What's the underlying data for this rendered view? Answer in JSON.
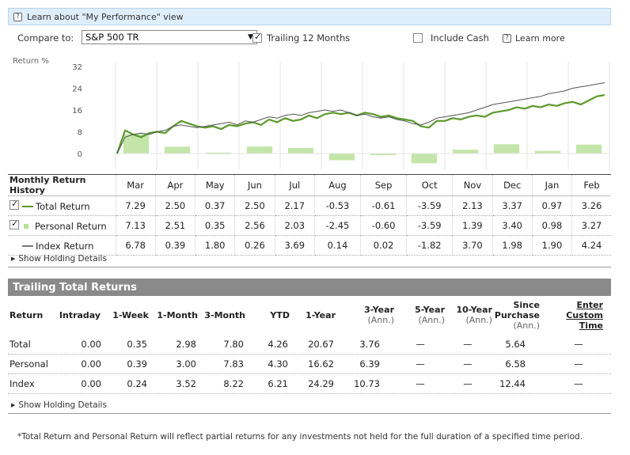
{
  "info_bar": {
    "icon": "question-icon",
    "text": "Learn about \"My Performance\" view"
  },
  "controls": {
    "compare_label": "Compare to:",
    "compare_value": "S&P 500 TR",
    "trailing_label": "Trailing 12 Months",
    "trailing_checked": true,
    "include_cash_label": "Include Cash",
    "include_cash_checked": false,
    "learn_more": "Learn more"
  },
  "chart_data": {
    "type": "line",
    "ylabel": "Return %",
    "yticks": [
      "32",
      "24",
      "16",
      "8",
      "0"
    ],
    "ylim": [
      -3,
      32
    ],
    "series": [
      {
        "name": "Total Return",
        "color": "#5a9a2a",
        "values": [
          0,
          8.5,
          7,
          6,
          7.5,
          8,
          7.5,
          10,
          12,
          11,
          10,
          9.5,
          10,
          9,
          10.5,
          10,
          11,
          11.5,
          10.5,
          12.5,
          11.5,
          13,
          12,
          12.5,
          14,
          13,
          14.5,
          15,
          14.5,
          15,
          14,
          15,
          14.5,
          13.5,
          14,
          13,
          12.5,
          12,
          10,
          9.5,
          12,
          12,
          13,
          12.5,
          13.5,
          14,
          13.5,
          15,
          15.5,
          16,
          17,
          16.5,
          17.5,
          17,
          18,
          17.5,
          18.5,
          19,
          18,
          19.5,
          21,
          21.5
        ]
      },
      {
        "name": "Index Return",
        "color": "#555555",
        "values": [
          0,
          6,
          7,
          7.5,
          7,
          8,
          8.5,
          10,
          10.5,
          10,
          9.5,
          10,
          10.5,
          11,
          11.5,
          10.5,
          12,
          11.5,
          12.5,
          13.5,
          13,
          14,
          14.5,
          14,
          15,
          15.5,
          16,
          15.5,
          16,
          15,
          14,
          14.5,
          13.5,
          13,
          13.5,
          12.5,
          12,
          11,
          10.5,
          11.5,
          13,
          13.5,
          14,
          14.5,
          15,
          16,
          17,
          18,
          18.5,
          19,
          19.5,
          20,
          20.5,
          21,
          22,
          22.5,
          23,
          24,
          24.5,
          25,
          25.5,
          26
        ]
      }
    ],
    "bars": {
      "name": "Personal Return",
      "color": "#b8e09a",
      "categories": [
        "Mar",
        "Apr",
        "May",
        "Jun",
        "Jul",
        "Aug",
        "Sep",
        "Oct",
        "Nov",
        "Dec",
        "Jan",
        "Feb"
      ],
      "values": [
        7.13,
        2.51,
        0.35,
        2.56,
        2.03,
        -2.45,
        -0.6,
        -3.59,
        1.39,
        3.4,
        0.98,
        3.27
      ]
    }
  },
  "monthly": {
    "title": "Monthly Return History",
    "months": [
      "Mar",
      "Apr",
      "May",
      "Jun",
      "Jul",
      "Aug",
      "Sep",
      "Oct",
      "Nov",
      "Dec",
      "Jan",
      "Feb"
    ],
    "rows": [
      {
        "label": "Total Return",
        "checked": true,
        "line_color": "#5a9a2a",
        "values": [
          "7.29",
          "2.50",
          "0.37",
          "2.50",
          "2.17",
          "-0.53",
          "-0.61",
          "-3.59",
          "2.13",
          "3.37",
          "0.97",
          "3.26"
        ]
      },
      {
        "label": "Personal Return",
        "checked": true,
        "line_color": "#b8e09a",
        "values": [
          "7.13",
          "2.51",
          "0.35",
          "2.56",
          "2.03",
          "-2.45",
          "-0.60",
          "-3.59",
          "1.39",
          "3.40",
          "0.98",
          "3.27"
        ]
      },
      {
        "label": "Index Return",
        "checked": false,
        "line_color": "#777777",
        "values": [
          "6.78",
          "0.39",
          "1.80",
          "0.26",
          "3.69",
          "0.14",
          "0.02",
          "-1.82",
          "3.70",
          "1.98",
          "1.90",
          "4.24"
        ]
      }
    ],
    "show_holding": "Show Holding Details"
  },
  "trailing": {
    "title": "Trailing Total Returns",
    "headers": {
      "return": "Return",
      "intraday": "Intraday",
      "week1": "1-Week",
      "month1": "1-Month",
      "month3": "3-Month",
      "ytd": "YTD",
      "year1": "1-Year",
      "year3": "3-Year",
      "year5": "5-Year",
      "year10": "10-Year",
      "since_a": "Since",
      "since_b": "Purchase",
      "ann": "(Ann.)",
      "custom_a": "Enter",
      "custom_b": "Custom",
      "custom_c": "Time"
    },
    "rows": [
      {
        "label": "Total",
        "values": [
          "0.00",
          "0.35",
          "2.98",
          "7.80",
          "4.26",
          "20.67",
          "3.76",
          "—",
          "—",
          "5.64",
          "—"
        ]
      },
      {
        "label": "Personal",
        "values": [
          "0.00",
          "0.39",
          "3.00",
          "7.83",
          "4.30",
          "16.62",
          "6.39",
          "—",
          "—",
          "6.58",
          "—"
        ]
      },
      {
        "label": "Index",
        "values": [
          "0.00",
          "0.24",
          "3.52",
          "8.22",
          "6.21",
          "24.29",
          "10.73",
          "—",
          "—",
          "12.44",
          "—"
        ]
      }
    ],
    "show_holding": "Show Holding Details"
  },
  "footnote": "*Total Return and Personal Return will reflect partial returns for any investments not held for the full duration of a specified time period."
}
